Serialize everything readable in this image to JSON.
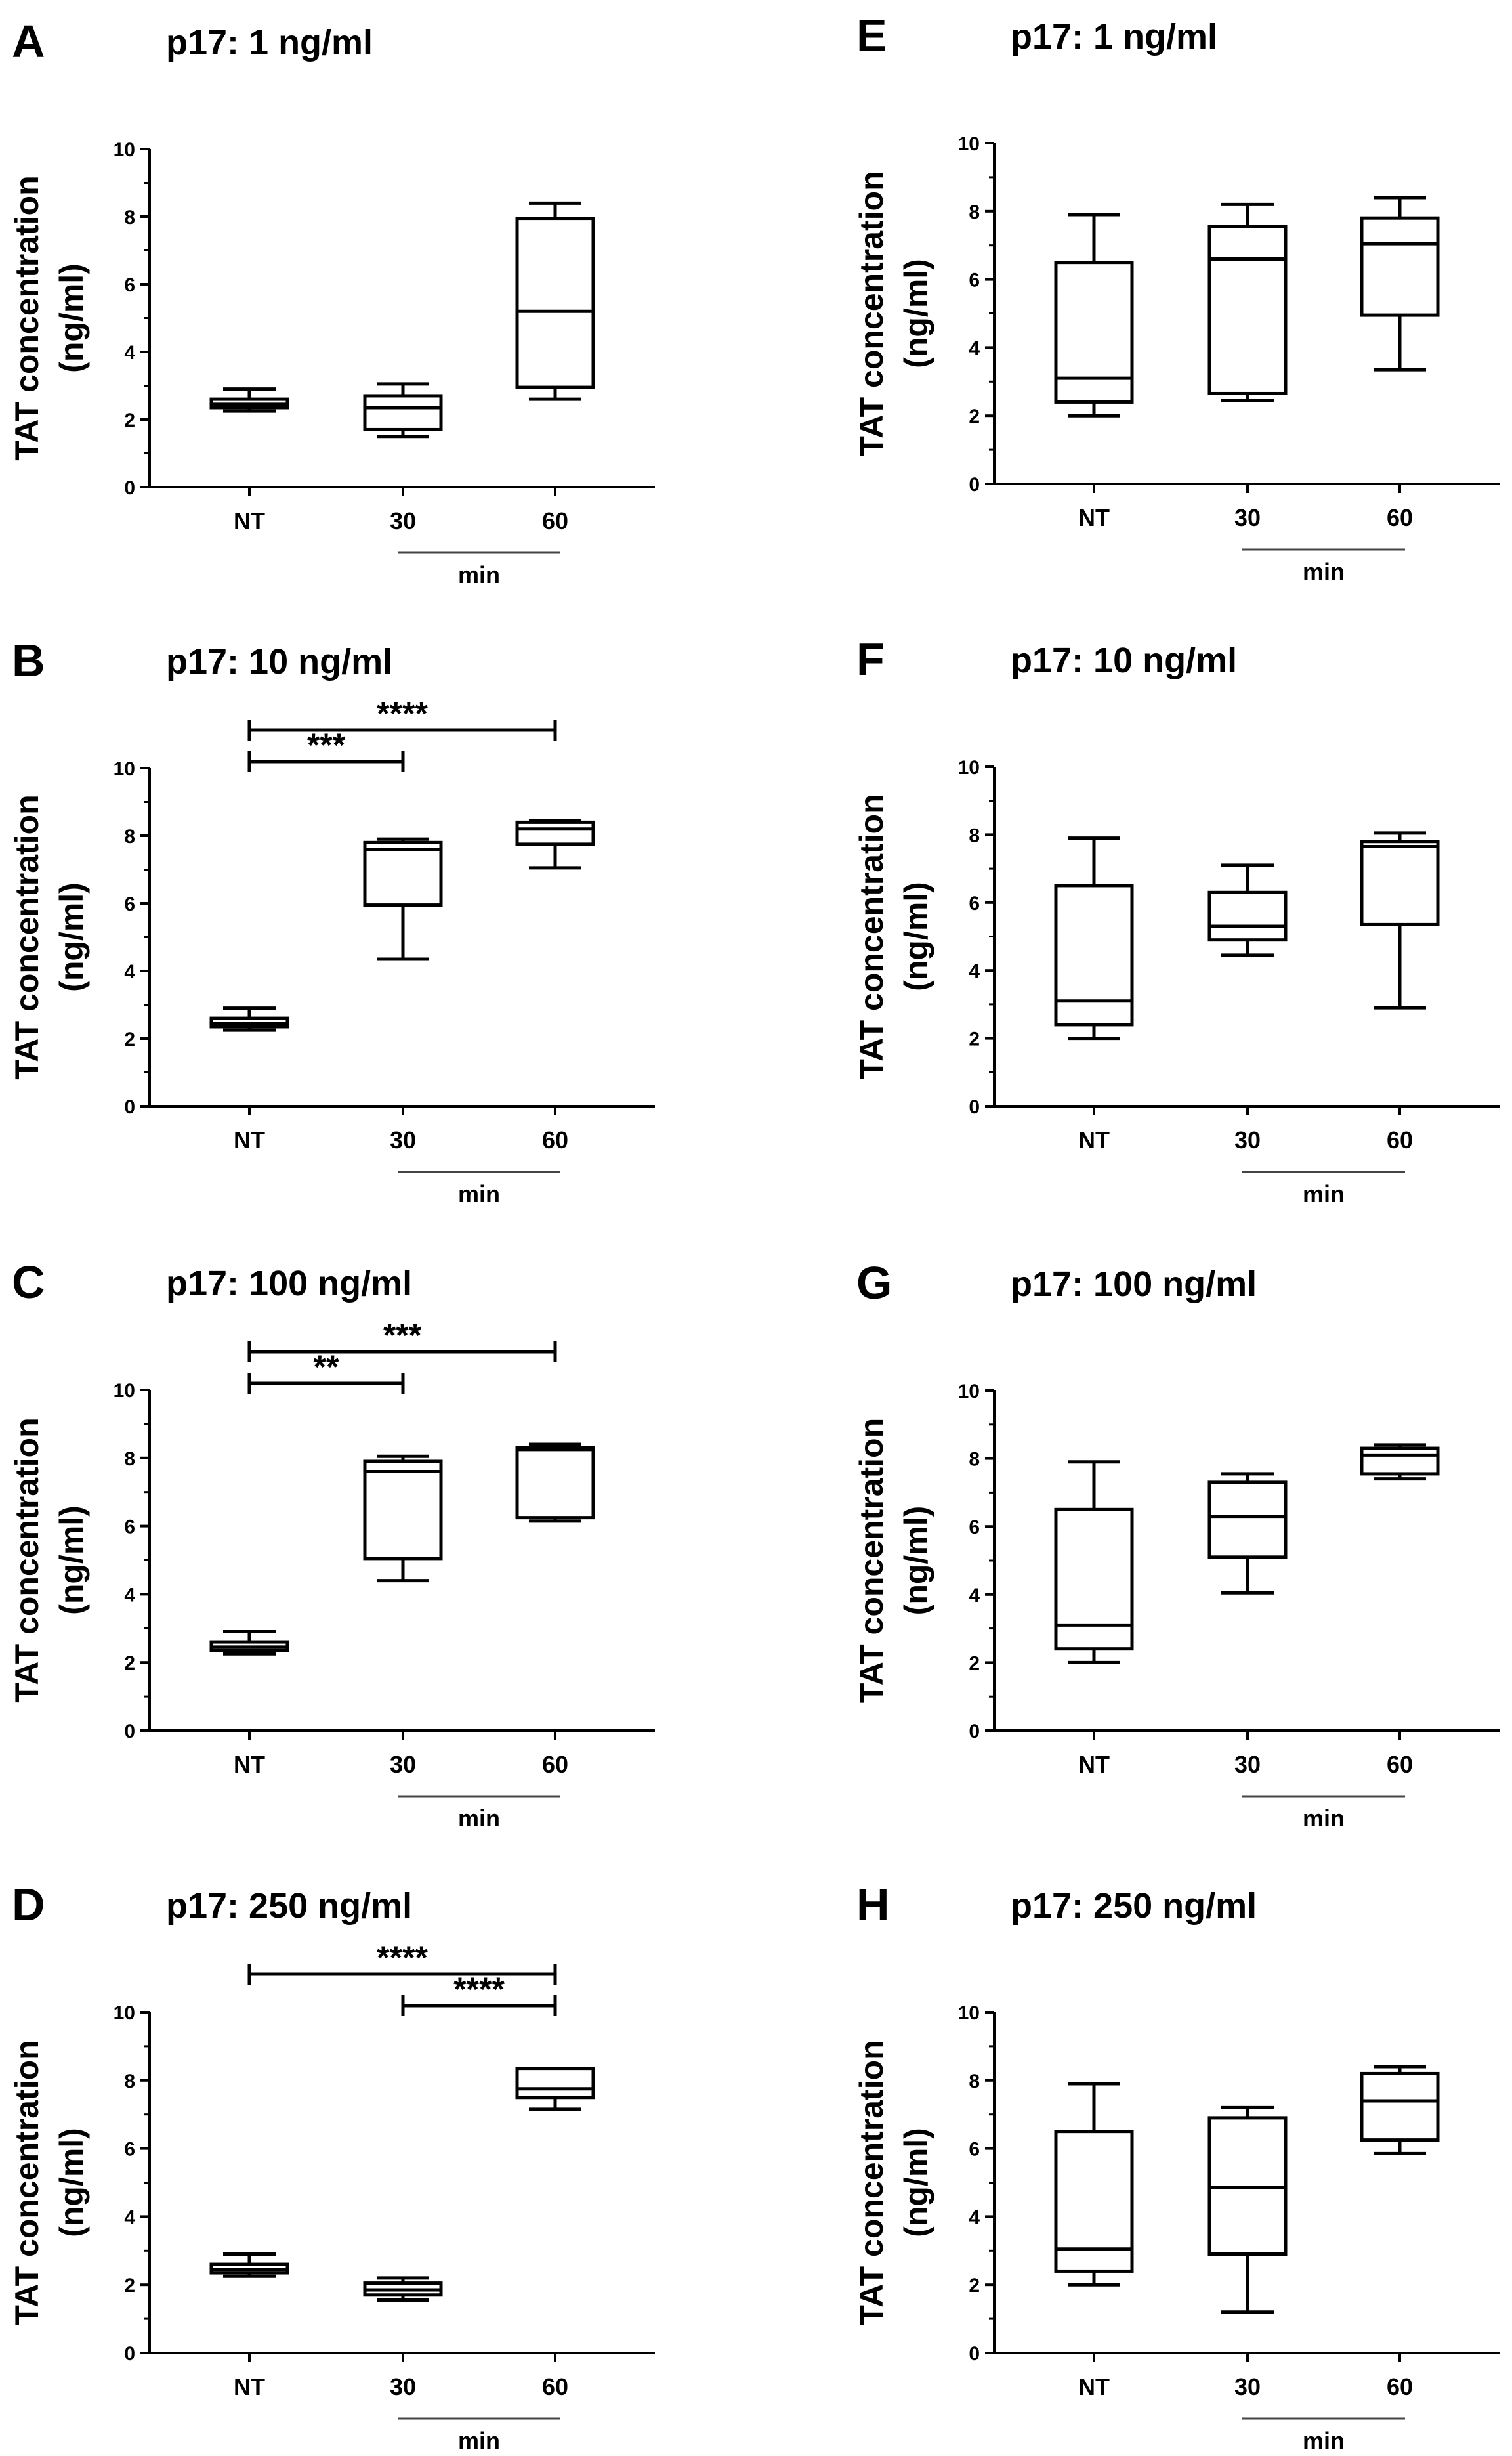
{
  "chart_data": [
    {
      "panel": "A",
      "title": "p17: 1 ng/ml",
      "type": "box",
      "categories": [
        "NT",
        "30",
        "60"
      ],
      "ylabel": [
        "TAT concentration",
        "(ng/ml)"
      ],
      "ylim": [
        0,
        10
      ],
      "yticks": [
        0,
        2,
        4,
        6,
        8,
        10
      ],
      "group_label": "min",
      "boxes": [
        {
          "category": "NT",
          "min": 2.25,
          "q1": 2.35,
          "median": 2.45,
          "q3": 2.6,
          "max": 2.9
        },
        {
          "category": "30",
          "min": 1.5,
          "q1": 1.7,
          "median": 2.35,
          "q3": 2.7,
          "max": 3.05
        },
        {
          "category": "60",
          "min": 2.6,
          "q1": 2.95,
          "median": 5.2,
          "q3": 7.95,
          "max": 8.4
        }
      ],
      "significance": []
    },
    {
      "panel": "B",
      "title": "p17: 10 ng/ml",
      "type": "box",
      "categories": [
        "NT",
        "30",
        "60"
      ],
      "ylabel": [
        "TAT concentration",
        "(ng/ml)"
      ],
      "ylim": [
        0,
        10
      ],
      "yticks": [
        0,
        2,
        4,
        6,
        8,
        10
      ],
      "group_label": "min",
      "boxes": [
        {
          "category": "NT",
          "min": 2.25,
          "q1": 2.35,
          "median": 2.45,
          "q3": 2.6,
          "max": 2.9
        },
        {
          "category": "30",
          "min": 4.35,
          "q1": 5.95,
          "median": 7.6,
          "q3": 7.8,
          "max": 7.9
        },
        {
          "category": "60",
          "min": 7.05,
          "q1": 7.75,
          "median": 8.2,
          "q3": 8.4,
          "max": 8.45
        }
      ],
      "significance": [
        {
          "from": "NT",
          "to": "60",
          "label": "****"
        },
        {
          "from": "NT",
          "to": "30",
          "label": "***"
        }
      ]
    },
    {
      "panel": "C",
      "title": "p17: 100 ng/ml",
      "type": "box",
      "categories": [
        "NT",
        "30",
        "60"
      ],
      "ylabel": [
        "TAT concentration",
        "(ng/ml)"
      ],
      "ylim": [
        0,
        10
      ],
      "yticks": [
        0,
        2,
        4,
        6,
        8,
        10
      ],
      "group_label": "min",
      "boxes": [
        {
          "category": "NT",
          "min": 2.25,
          "q1": 2.35,
          "median": 2.45,
          "q3": 2.6,
          "max": 2.9
        },
        {
          "category": "30",
          "min": 4.4,
          "q1": 5.05,
          "median": 7.6,
          "q3": 7.9,
          "max": 8.05
        },
        {
          "category": "60",
          "min": 6.15,
          "q1": 6.25,
          "median": 8.25,
          "q3": 8.3,
          "max": 8.4
        }
      ],
      "significance": [
        {
          "from": "NT",
          "to": "60",
          "label": "***"
        },
        {
          "from": "NT",
          "to": "30",
          "label": "**"
        }
      ]
    },
    {
      "panel": "D",
      "title": "p17: 250 ng/ml",
      "type": "box",
      "categories": [
        "NT",
        "30",
        "60"
      ],
      "ylabel": [
        "TAT concentration",
        "(ng/ml)"
      ],
      "ylim": [
        0,
        10
      ],
      "yticks": [
        0,
        2,
        4,
        6,
        8,
        10
      ],
      "group_label": "min",
      "boxes": [
        {
          "category": "NT",
          "min": 2.25,
          "q1": 2.35,
          "median": 2.45,
          "q3": 2.6,
          "max": 2.9
        },
        {
          "category": "30",
          "min": 1.55,
          "q1": 1.7,
          "median": 1.85,
          "q3": 2.05,
          "max": 2.2
        },
        {
          "category": "60",
          "min": 7.15,
          "q1": 7.5,
          "median": 7.75,
          "q3": 8.35,
          "max": 8.35
        }
      ],
      "significance": [
        {
          "from": "NT",
          "to": "60",
          "label": "****"
        },
        {
          "from": "30",
          "to": "60",
          "label": "****"
        }
      ]
    },
    {
      "panel": "E",
      "title": "p17: 1 ng/ml",
      "type": "box",
      "categories": [
        "NT",
        "30",
        "60"
      ],
      "ylabel": [
        "TAT concentration",
        "(ng/ml)"
      ],
      "ylim": [
        0,
        10
      ],
      "yticks": [
        0,
        2,
        4,
        6,
        8,
        10
      ],
      "group_label": "min",
      "boxes": [
        {
          "category": "NT",
          "min": 2.0,
          "q1": 2.4,
          "median": 3.1,
          "q3": 6.5,
          "max": 7.9
        },
        {
          "category": "30",
          "min": 2.45,
          "q1": 2.65,
          "median": 6.6,
          "q3": 7.55,
          "max": 8.2
        },
        {
          "category": "60",
          "min": 3.35,
          "q1": 4.95,
          "median": 7.05,
          "q3": 7.8,
          "max": 8.4
        }
      ],
      "significance": []
    },
    {
      "panel": "F",
      "title": "p17: 10 ng/ml",
      "type": "box",
      "categories": [
        "NT",
        "30",
        "60"
      ],
      "ylabel": [
        "TAT concentration",
        "(ng/ml)"
      ],
      "ylim": [
        0,
        10
      ],
      "yticks": [
        0,
        2,
        4,
        6,
        8,
        10
      ],
      "group_label": "min",
      "boxes": [
        {
          "category": "NT",
          "min": 2.0,
          "q1": 2.4,
          "median": 3.1,
          "q3": 6.5,
          "max": 7.9
        },
        {
          "category": "30",
          "min": 4.45,
          "q1": 4.9,
          "median": 5.3,
          "q3": 6.3,
          "max": 7.1
        },
        {
          "category": "60",
          "min": 2.9,
          "q1": 5.35,
          "median": 7.65,
          "q3": 7.8,
          "max": 8.05
        }
      ],
      "significance": []
    },
    {
      "panel": "G",
      "title": "p17: 100 ng/ml",
      "type": "box",
      "categories": [
        "NT",
        "30",
        "60"
      ],
      "ylabel": [
        "TAT concentration",
        "(ng/ml)"
      ],
      "ylim": [
        0,
        10
      ],
      "yticks": [
        0,
        2,
        4,
        6,
        8,
        10
      ],
      "group_label": "min",
      "boxes": [
        {
          "category": "NT",
          "min": 2.0,
          "q1": 2.4,
          "median": 3.1,
          "q3": 6.5,
          "max": 7.9
        },
        {
          "category": "30",
          "min": 4.05,
          "q1": 5.1,
          "median": 6.3,
          "q3": 7.3,
          "max": 7.55
        },
        {
          "category": "60",
          "min": 7.4,
          "q1": 7.55,
          "median": 8.1,
          "q3": 8.3,
          "max": 8.4
        }
      ],
      "significance": []
    },
    {
      "panel": "H",
      "title": "p17: 250 ng/ml",
      "type": "box",
      "categories": [
        "NT",
        "30",
        "60"
      ],
      "ylabel": [
        "TAT concentration",
        "(ng/ml)"
      ],
      "ylim": [
        0,
        10
      ],
      "yticks": [
        0,
        2,
        4,
        6,
        8,
        10
      ],
      "group_label": "min",
      "boxes": [
        {
          "category": "NT",
          "min": 2.0,
          "q1": 2.4,
          "median": 3.05,
          "q3": 6.5,
          "max": 7.9
        },
        {
          "category": "30",
          "min": 1.2,
          "q1": 2.9,
          "median": 4.85,
          "q3": 6.9,
          "max": 7.2
        },
        {
          "category": "60",
          "min": 5.85,
          "q1": 6.25,
          "median": 7.4,
          "q3": 8.2,
          "max": 8.4
        }
      ],
      "significance": []
    }
  ]
}
